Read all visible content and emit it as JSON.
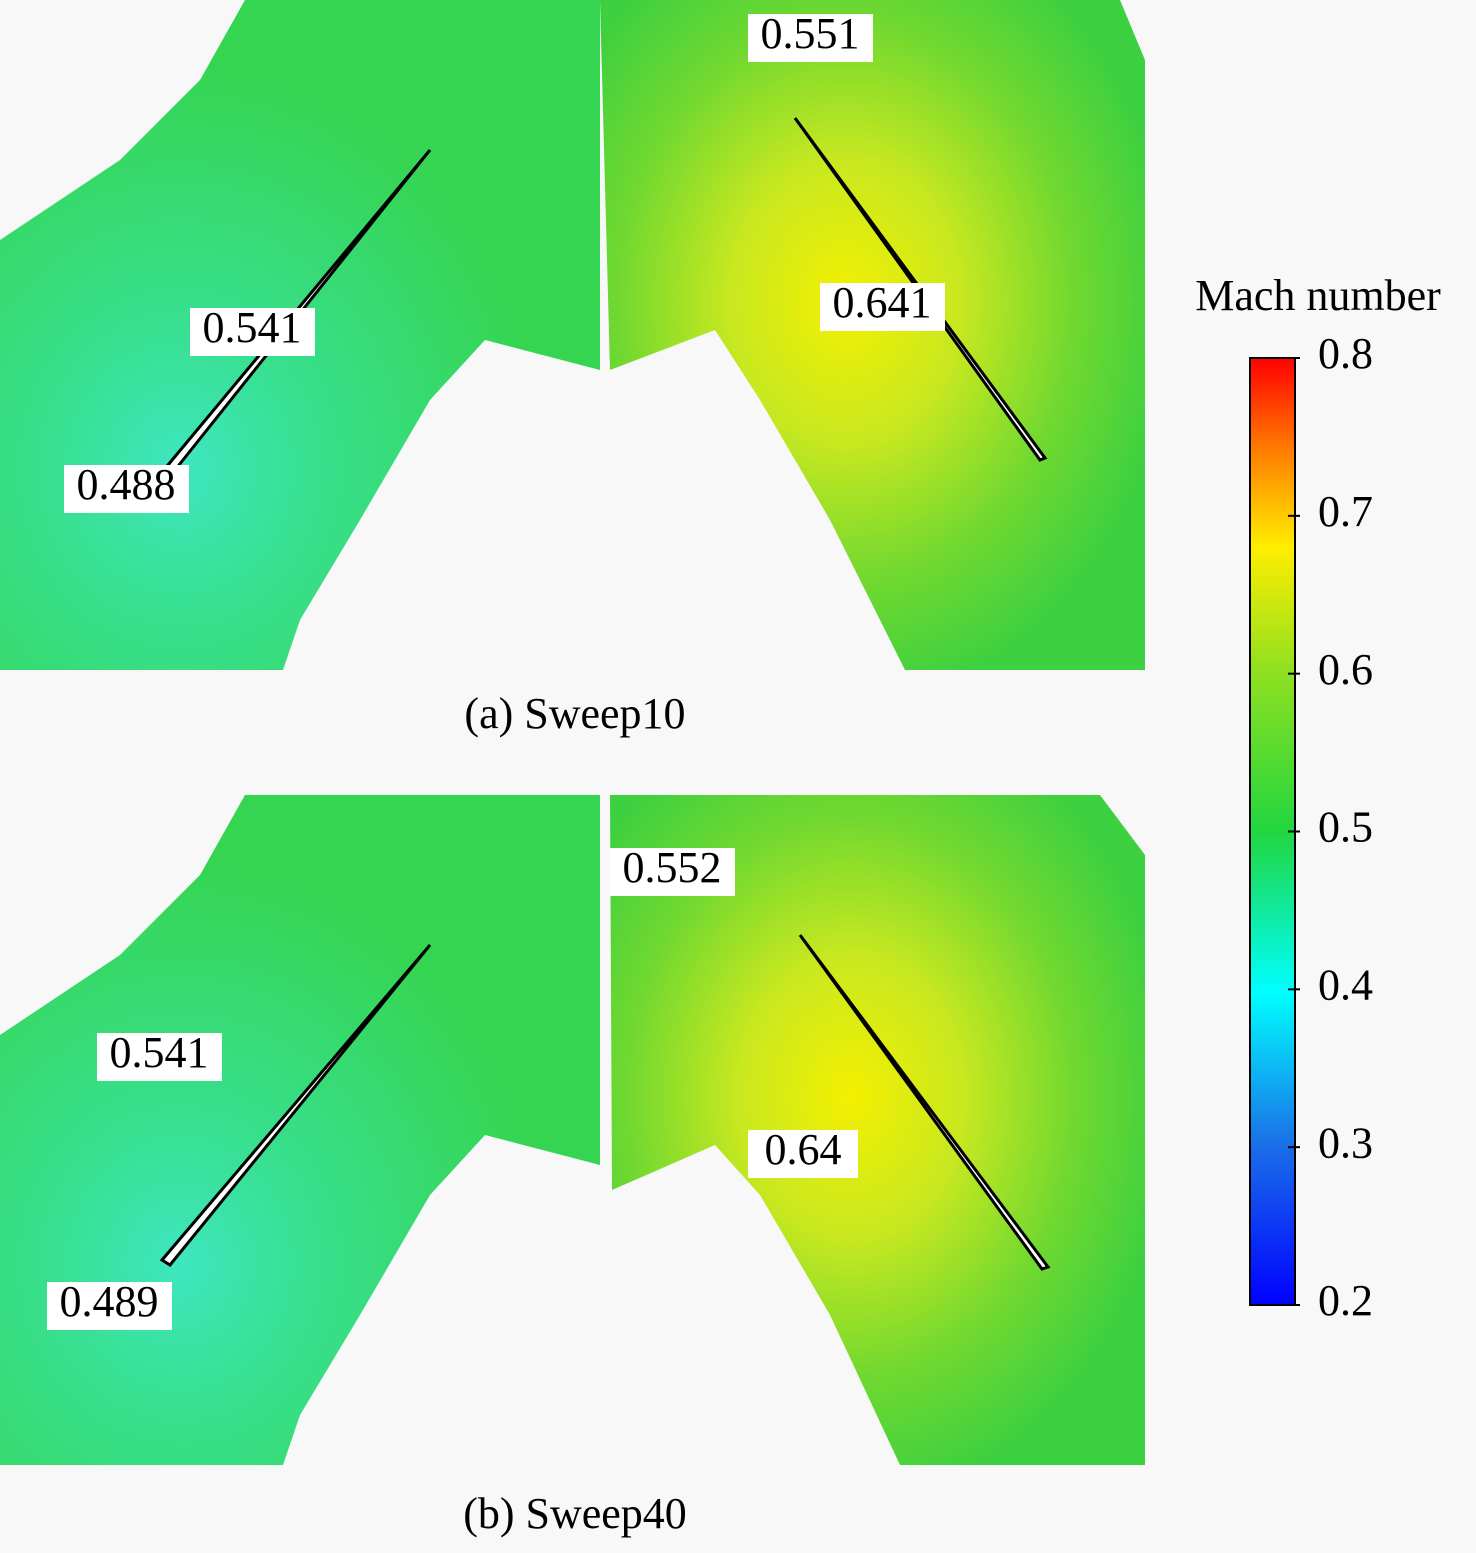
{
  "panels": [
    {
      "caption": "(a) Sweep10",
      "labels": [
        "0.551",
        "0.541",
        "0.641",
        "0.488"
      ]
    },
    {
      "caption": "(b) Sweep40",
      "labels": [
        "0.552",
        "0.541",
        "0.64",
        "0.489"
      ]
    }
  ],
  "colorbar": {
    "title": "Mach number",
    "range": [
      0.2,
      0.8
    ],
    "ticks": [
      0.2,
      0.3,
      0.4,
      0.5,
      0.6,
      0.7,
      0.8
    ]
  }
}
